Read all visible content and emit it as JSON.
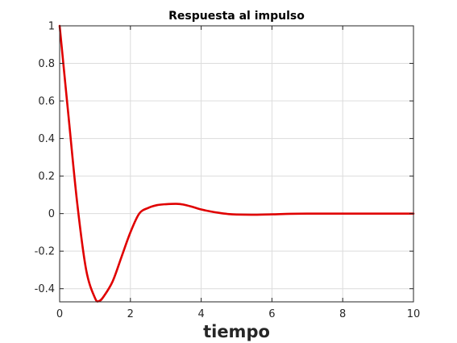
{
  "chart_data": {
    "type": "line",
    "title": "Respuesta al impulso",
    "xlabel": "tiempo",
    "ylabel": "",
    "xlim": [
      0,
      10
    ],
    "ylim": [
      -0.47,
      1
    ],
    "xticks": [
      0,
      2,
      4,
      6,
      8,
      10
    ],
    "xtick_labels": [
      "0",
      "2",
      "4",
      "6",
      "8",
      "10"
    ],
    "yticks": [
      -0.4,
      -0.2,
      0,
      0.2,
      0.4,
      0.6,
      0.8,
      1
    ],
    "ytick_labels": [
      "-0.4",
      "-0.2",
      "0",
      "0.2",
      "0.4",
      "0.6",
      "0.8",
      "1"
    ],
    "grid": true,
    "legend": "none",
    "series": [
      {
        "color": "#e00000",
        "x": [
          0,
          0.25,
          0.5,
          0.75,
          1.0,
          1.12,
          1.25,
          1.5,
          1.75,
          2.0,
          2.25,
          2.5,
          2.75,
          3.0,
          3.3,
          3.5,
          3.75,
          4.0,
          4.25,
          4.5,
          4.75,
          5.0,
          5.5,
          6.0,
          6.5,
          7.0,
          8.0,
          9.0,
          10.0
        ],
        "y": [
          1.0,
          0.52,
          0.05,
          -0.3,
          -0.45,
          -0.465,
          -0.44,
          -0.36,
          -0.23,
          -0.1,
          0.0,
          0.03,
          0.045,
          0.05,
          0.052,
          0.048,
          0.036,
          0.022,
          0.012,
          0.004,
          -0.002,
          -0.005,
          -0.006,
          -0.004,
          -0.001,
          0.0,
          0.0,
          0.0,
          0.0
        ]
      }
    ]
  }
}
